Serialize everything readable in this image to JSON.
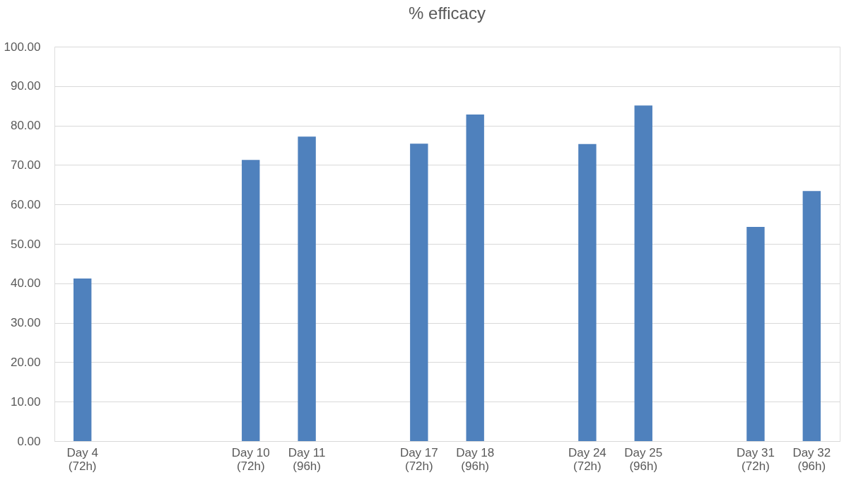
{
  "chart_data": {
    "type": "bar",
    "title": "% efficacy",
    "categories": [
      "Day 4\n(72h)",
      null,
      null,
      "Day 10\n(72h)",
      "Day 11\n(96h)",
      null,
      "Day 17\n(72h)",
      "Day 18\n(96h)",
      null,
      "Day 24\n(72h)",
      "Day 25\n(96h)",
      null,
      "Day 31\n(72h)",
      "Day 32\n(96h)"
    ],
    "values": [
      41.2,
      null,
      null,
      71.3,
      77.2,
      null,
      75.4,
      82.8,
      null,
      75.3,
      85.1,
      null,
      54.3,
      63.4
    ],
    "color": "#4f81bd",
    "ylim": [
      0,
      100
    ],
    "yticks": [
      {
        "value": 0,
        "label": "0.00"
      },
      {
        "value": 10,
        "label": "10.00"
      },
      {
        "value": 20,
        "label": "20.00"
      },
      {
        "value": 30,
        "label": "30.00"
      },
      {
        "value": 40,
        "label": "40.00"
      },
      {
        "value": 50,
        "label": "50.00"
      },
      {
        "value": 60,
        "label": "60.00"
      },
      {
        "value": 70,
        "label": "70.00"
      },
      {
        "value": 80,
        "label": "80.00"
      },
      {
        "value": 90,
        "label": "90.00"
      },
      {
        "value": 100,
        "label": "100.00"
      }
    ],
    "grid": "y"
  }
}
